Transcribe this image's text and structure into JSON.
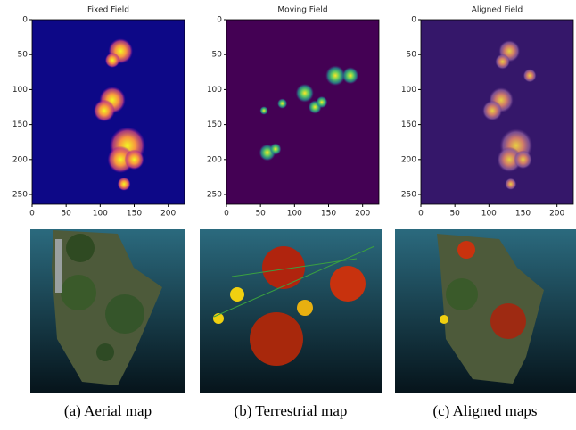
{
  "chart_data": [
    {
      "type": "heatmap",
      "title": "Fixed Field",
      "colormap": "plasma",
      "xlim": [
        0,
        224
      ],
      "ylim": [
        0,
        264
      ],
      "xticks": [
        0,
        50,
        100,
        150,
        200
      ],
      "yticks": [
        0,
        50,
        100,
        150,
        200,
        250
      ]
    },
    {
      "type": "heatmap",
      "title": "Moving Field",
      "colormap": "viridis",
      "xlim": [
        0,
        224
      ],
      "ylim": [
        0,
        264
      ],
      "xticks": [
        0,
        50,
        100,
        150,
        200
      ],
      "yticks": [
        0,
        50,
        100,
        150,
        200,
        250
      ]
    },
    {
      "type": "heatmap",
      "title": "Aligned Field",
      "colormap": "mixed",
      "xlim": [
        0,
        224
      ],
      "ylim": [
        0,
        264
      ],
      "xticks": [
        0,
        50,
        100,
        150,
        200
      ],
      "yticks": [
        0,
        50,
        100,
        150,
        200,
        250
      ]
    }
  ],
  "captions": [
    "(a) Aerial map",
    "(b) Terrestrial map",
    "(c) Aligned maps"
  ]
}
